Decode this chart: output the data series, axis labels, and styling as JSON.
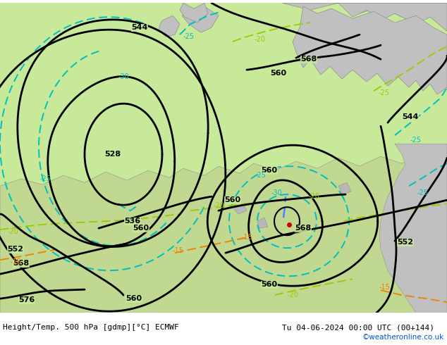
{
  "title_left": "Height/Temp. 500 hPa [gdmp][°C] ECMWF",
  "title_right": "Tu 04-06-2024 00:00 UTC (00+144)",
  "watermark": "©weatheronline.co.uk",
  "bg_green": "#c8e89a",
  "gray_land": "#c0c0c0",
  "gray_border": "#909090",
  "figsize": [
    6.34,
    4.9
  ],
  "dpi": 100,
  "bk": "#000000",
  "cy": "#00bfbf",
  "lg": "#a0c800",
  "og": "#f08000",
  "rd": "#cc0000"
}
